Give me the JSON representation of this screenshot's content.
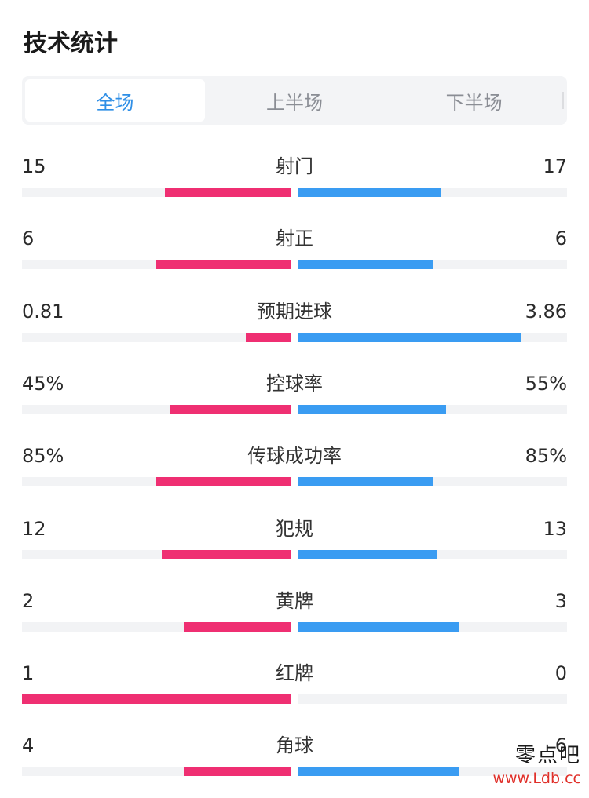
{
  "header": {
    "title": "技术统计"
  },
  "tabs": [
    {
      "label": "全场",
      "active": true
    },
    {
      "label": "上半场",
      "active": false
    },
    {
      "label": "下半场",
      "active": false
    }
  ],
  "colors": {
    "home": "#ef2f72",
    "away": "#3a9cf2",
    "accent": "#2f8fe6"
  },
  "stats": [
    {
      "label": "射门",
      "left": "15",
      "right": "17",
      "left_frac": 0.47,
      "right_frac": 0.53
    },
    {
      "label": "射正",
      "left": "6",
      "right": "6",
      "left_frac": 0.5,
      "right_frac": 0.5
    },
    {
      "label": "预期进球",
      "left": "0.81",
      "right": "3.86",
      "left_frac": 0.17,
      "right_frac": 0.83
    },
    {
      "label": "控球率",
      "left": "45%",
      "right": "55%",
      "left_frac": 0.45,
      "right_frac": 0.55
    },
    {
      "label": "传球成功率",
      "left": "85%",
      "right": "85%",
      "left_frac": 0.5,
      "right_frac": 0.5
    },
    {
      "label": "犯规",
      "left": "12",
      "right": "13",
      "left_frac": 0.48,
      "right_frac": 0.52
    },
    {
      "label": "黄牌",
      "left": "2",
      "right": "3",
      "left_frac": 0.4,
      "right_frac": 0.6
    },
    {
      "label": "红牌",
      "left": "1",
      "right": "0",
      "left_frac": 1.0,
      "right_frac": 0.0
    },
    {
      "label": "角球",
      "left": "4",
      "right": "6",
      "left_frac": 0.4,
      "right_frac": 0.6
    }
  ],
  "watermark": {
    "line1": "零点吧",
    "line2": "www.Ldb.cc"
  }
}
